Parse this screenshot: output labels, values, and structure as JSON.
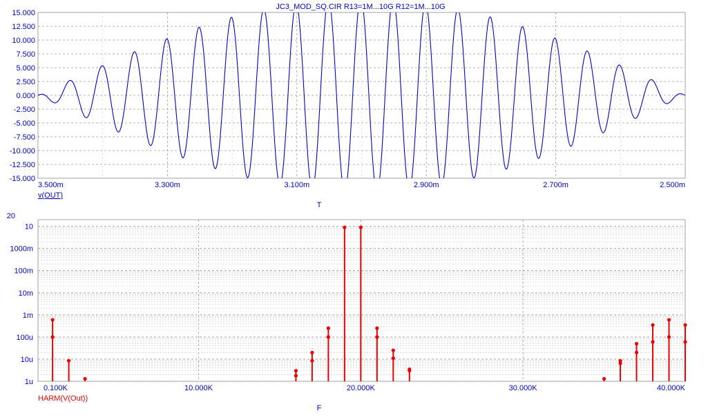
{
  "chart_data": [
    {
      "type": "line",
      "title": "JC3_MOD_SQ.CIR R13=1M...10G R12=1M...10G",
      "xlabel": "T",
      "trace_label": "v(OUT)",
      "x_ticks": [
        "3.500m",
        "3.300m",
        "3.100m",
        "2.900m",
        "2.700m",
        "2.500m"
      ],
      "xlim": [
        3.5,
        2.5
      ],
      "x_unit": "m",
      "y_ticks": [
        "15.000",
        "12.500",
        "10.000",
        "7.500",
        "5.000",
        "2.500",
        "0.000",
        "-2.500",
        "-5.000",
        "-7.500",
        "-10.000",
        "-12.500",
        "-15.000"
      ],
      "ylim": [
        -15,
        15
      ],
      "grid": true,
      "color": "#0000cc",
      "series": [
        {
          "carrier_cycles": 20,
          "envelope_peak": 17.5,
          "x": [
            3.5,
            3.45,
            3.4,
            3.35,
            3.3,
            3.25,
            3.2,
            3.15,
            3.1,
            3.05,
            3.0,
            2.95,
            2.9,
            2.85,
            2.8,
            2.75,
            2.7,
            2.65,
            2.6,
            2.55,
            2.5
          ],
          "envelope": [
            0.0,
            2.5,
            5.0,
            7.5,
            9.6,
            11.5,
            13.2,
            14.4,
            15.0,
            15.0,
            15.0,
            15.0,
            15.0,
            13.8,
            12.4,
            10.6,
            8.6,
            6.3,
            3.9,
            1.4,
            0.0
          ]
        }
      ]
    },
    {
      "type": "bar",
      "style": "stem",
      "xlabel": "F",
      "trace_label": "HARM(V(Out))",
      "x_ticks": [
        "0.100K",
        "10.000K",
        "20.000K",
        "30.000K",
        "40.000K"
      ],
      "xlim": [
        0.1,
        40
      ],
      "x_unit": "K",
      "y_ticks": [
        "10",
        "1000m",
        "100m",
        "10m",
        "1m",
        "100u",
        "10u",
        "1u"
      ],
      "y_top_label": "20",
      "yscale": "log",
      "ylim": [
        1e-06,
        20
      ],
      "grid": true,
      "color": "#ee0000",
      "series": [
        {
          "x": [
            1,
            2,
            3,
            16,
            17,
            18,
            19,
            20,
            21,
            22,
            23,
            35,
            36,
            37,
            38,
            39,
            40
          ],
          "values": [
            0.0006,
            8.5e-06,
            1.3e-06,
            3e-06,
            2e-05,
            0.00025,
            9.0,
            9.0,
            0.00025,
            2.5e-05,
            3.5e-06,
            1.3e-06,
            8.5e-06,
            5e-05,
            0.00035,
            0.0006,
            0.00035
          ],
          "lower_marker": [
            0.0001,
            null,
            null,
            1.8e-06,
            8.5e-06,
            0.0001,
            null,
            null,
            0.0001,
            1.1e-05,
            3e-06,
            null,
            6.5e-06,
            2e-05,
            6e-05,
            0.0001,
            6e-05
          ]
        }
      ]
    }
  ]
}
